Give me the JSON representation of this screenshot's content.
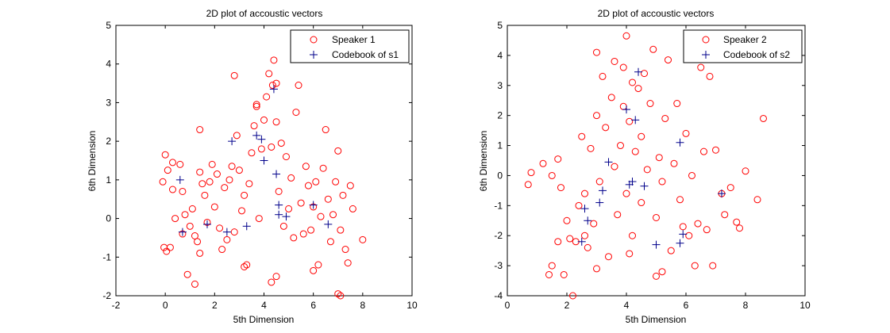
{
  "chart_data": [
    {
      "type": "scatter",
      "title": "2D plot of accoustic vectors",
      "xlabel": "5th Dimension",
      "ylabel": "6th Dimension",
      "xlim": [
        -2,
        10
      ],
      "ylim": [
        -2,
        5
      ],
      "xticks": [
        "-2",
        "0",
        "2",
        "4",
        "6",
        "8",
        "10"
      ],
      "yticks": [
        "-2",
        "-1",
        "0",
        "1",
        "2",
        "3",
        "4",
        "5"
      ],
      "legend_position": "top-right",
      "series": [
        {
          "name": "Speaker 1",
          "marker": "circle",
          "color": "#ff0000",
          "points": [
            [
              0.0,
              1.65
            ],
            [
              0.1,
              1.25
            ],
            [
              0.3,
              1.45
            ],
            [
              -0.1,
              0.95
            ],
            [
              0.2,
              -0.75
            ],
            [
              0.05,
              -0.85
            ],
            [
              -0.05,
              -0.75
            ],
            [
              0.4,
              0.0
            ],
            [
              0.3,
              0.75
            ],
            [
              0.6,
              1.4
            ],
            [
              0.7,
              0.7
            ],
            [
              0.7,
              -0.4
            ],
            [
              0.8,
              0.1
            ],
            [
              0.9,
              -1.45
            ],
            [
              1.0,
              -0.2
            ],
            [
              1.1,
              0.25
            ],
            [
              1.2,
              -0.45
            ],
            [
              1.3,
              -0.6
            ],
            [
              1.4,
              1.2
            ],
            [
              1.5,
              0.9
            ],
            [
              1.4,
              -0.9
            ],
            [
              1.6,
              0.6
            ],
            [
              1.7,
              -0.1
            ],
            [
              1.8,
              0.95
            ],
            [
              1.9,
              1.4
            ],
            [
              2.0,
              0.3
            ],
            [
              2.1,
              1.15
            ],
            [
              2.2,
              -0.25
            ],
            [
              2.3,
              -0.8
            ],
            [
              2.4,
              0.8
            ],
            [
              2.5,
              -0.55
            ],
            [
              2.6,
              1.0
            ],
            [
              2.7,
              1.35
            ],
            [
              2.8,
              -0.35
            ],
            [
              2.9,
              2.15
            ],
            [
              3.0,
              1.25
            ],
            [
              3.1,
              0.2
            ],
            [
              3.2,
              0.6
            ],
            [
              3.3,
              -1.2
            ],
            [
              3.4,
              0.9
            ],
            [
              3.5,
              1.7
            ],
            [
              3.6,
              2.4
            ],
            [
              3.7,
              2.95
            ],
            [
              3.8,
              0.0
            ],
            [
              3.9,
              1.8
            ],
            [
              4.0,
              2.55
            ],
            [
              4.1,
              3.15
            ],
            [
              4.2,
              3.75
            ],
            [
              4.3,
              1.85
            ],
            [
              4.35,
              3.45
            ],
            [
              4.4,
              4.1
            ],
            [
              4.5,
              3.5
            ],
            [
              4.6,
              0.7
            ],
            [
              4.7,
              1.95
            ],
            [
              4.8,
              -0.2
            ],
            [
              4.9,
              1.6
            ],
            [
              5.0,
              0.25
            ],
            [
              5.1,
              1.05
            ],
            [
              5.2,
              -0.5
            ],
            [
              5.3,
              2.75
            ],
            [
              5.4,
              3.45
            ],
            [
              5.5,
              0.4
            ],
            [
              5.6,
              -0.4
            ],
            [
              5.7,
              1.35
            ],
            [
              5.8,
              0.85
            ],
            [
              5.9,
              -0.3
            ],
            [
              6.0,
              0.3
            ],
            [
              6.1,
              0.95
            ],
            [
              6.2,
              -1.2
            ],
            [
              6.3,
              0.05
            ],
            [
              6.4,
              1.3
            ],
            [
              6.5,
              2.3
            ],
            [
              6.6,
              0.5
            ],
            [
              6.7,
              -0.6
            ],
            [
              6.8,
              0.1
            ],
            [
              6.9,
              0.95
            ],
            [
              7.0,
              1.75
            ],
            [
              7.1,
              -0.3
            ],
            [
              7.2,
              0.6
            ],
            [
              7.3,
              -0.8
            ],
            [
              7.4,
              -1.15
            ],
            [
              7.5,
              0.85
            ],
            [
              7.6,
              0.25
            ],
            [
              8.0,
              -0.55
            ],
            [
              7.0,
              -1.95
            ],
            [
              7.1,
              -2.0
            ],
            [
              6.0,
              -1.35
            ],
            [
              4.5,
              -1.5
            ],
            [
              4.3,
              -1.65
            ],
            [
              3.2,
              -1.25
            ],
            [
              1.2,
              -1.7
            ],
            [
              2.8,
              3.7
            ],
            [
              1.4,
              2.3
            ],
            [
              4.5,
              2.5
            ],
            [
              3.7,
              2.9
            ]
          ]
        },
        {
          "name": "Codebook of s1",
          "marker": "plus",
          "color": "#00008b",
          "points": [
            [
              0.6,
              1.0
            ],
            [
              0.7,
              -0.35
            ],
            [
              1.7,
              -0.15
            ],
            [
              2.5,
              -0.35
            ],
            [
              2.7,
              2.0
            ],
            [
              3.3,
              -0.2
            ],
            [
              3.7,
              2.15
            ],
            [
              3.9,
              2.05
            ],
            [
              4.0,
              1.5
            ],
            [
              4.4,
              3.35
            ],
            [
              4.5,
              1.15
            ],
            [
              4.6,
              0.35
            ],
            [
              4.6,
              0.1
            ],
            [
              4.9,
              0.05
            ],
            [
              6.0,
              0.35
            ],
            [
              6.6,
              -0.15
            ]
          ]
        }
      ]
    },
    {
      "type": "scatter",
      "title": "2D plot of accoustic vectors",
      "xlabel": "5th Dimension",
      "ylabel": "6th Dimension",
      "xlim": [
        0,
        10
      ],
      "ylim": [
        -4,
        5
      ],
      "xticks": [
        "0",
        "2",
        "4",
        "6",
        "8",
        "10"
      ],
      "yticks": [
        "-4",
        "-3",
        "-2",
        "-1",
        "0",
        "1",
        "2",
        "3",
        "4",
        "5"
      ],
      "legend_position": "top-right",
      "series": [
        {
          "name": "Speaker 2",
          "marker": "circle",
          "color": "#ff0000",
          "points": [
            [
              0.7,
              -0.3
            ],
            [
              0.8,
              0.1
            ],
            [
              1.2,
              0.4
            ],
            [
              1.4,
              -3.3
            ],
            [
              1.5,
              -3.0
            ],
            [
              1.5,
              0.0
            ],
            [
              1.7,
              0.55
            ],
            [
              1.8,
              -0.4
            ],
            [
              1.9,
              -3.3
            ],
            [
              2.0,
              -1.5
            ],
            [
              2.1,
              -2.1
            ],
            [
              2.2,
              -4.0
            ],
            [
              2.3,
              -2.2
            ],
            [
              2.4,
              -1.0
            ],
            [
              2.5,
              1.3
            ],
            [
              2.6,
              -0.6
            ],
            [
              2.7,
              -2.4
            ],
            [
              2.8,
              0.9
            ],
            [
              2.9,
              -1.6
            ],
            [
              3.0,
              2.0
            ],
            [
              3.0,
              4.1
            ],
            [
              3.1,
              -0.2
            ],
            [
              3.2,
              3.3
            ],
            [
              3.3,
              1.6
            ],
            [
              3.4,
              -2.7
            ],
            [
              3.5,
              2.6
            ],
            [
              3.6,
              0.3
            ],
            [
              3.6,
              3.8
            ],
            [
              3.7,
              -1.3
            ],
            [
              3.8,
              1.0
            ],
            [
              3.9,
              2.3
            ],
            [
              3.9,
              3.6
            ],
            [
              4.0,
              -0.6
            ],
            [
              4.0,
              4.65
            ],
            [
              4.1,
              1.8
            ],
            [
              4.2,
              3.1
            ],
            [
              4.2,
              -2.0
            ],
            [
              4.3,
              0.8
            ],
            [
              4.4,
              2.9
            ],
            [
              4.5,
              1.3
            ],
            [
              4.5,
              -0.9
            ],
            [
              4.6,
              3.4
            ],
            [
              4.7,
              0.2
            ],
            [
              4.8,
              2.4
            ],
            [
              4.9,
              4.2
            ],
            [
              5.0,
              -1.4
            ],
            [
              5.0,
              -3.35
            ],
            [
              5.1,
              0.6
            ],
            [
              5.2,
              -0.2
            ],
            [
              5.3,
              1.9
            ],
            [
              5.4,
              3.85
            ],
            [
              5.5,
              -2.5
            ],
            [
              5.6,
              0.4
            ],
            [
              5.7,
              2.4
            ],
            [
              5.8,
              -0.8
            ],
            [
              5.9,
              -1.7
            ],
            [
              6.0,
              1.4
            ],
            [
              6.1,
              -2.0
            ],
            [
              6.2,
              0.0
            ],
            [
              6.3,
              -3.0
            ],
            [
              6.4,
              -1.6
            ],
            [
              6.5,
              3.6
            ],
            [
              6.6,
              0.8
            ],
            [
              6.7,
              -1.8
            ],
            [
              6.8,
              3.3
            ],
            [
              6.9,
              -3.0
            ],
            [
              7.0,
              0.85
            ],
            [
              7.2,
              -0.6
            ],
            [
              7.3,
              -1.3
            ],
            [
              7.5,
              -0.4
            ],
            [
              7.7,
              -1.55
            ],
            [
              7.8,
              -1.75
            ],
            [
              8.0,
              0.15
            ],
            [
              8.4,
              -0.8
            ],
            [
              8.6,
              1.9
            ],
            [
              5.2,
              -3.2
            ],
            [
              4.1,
              -2.6
            ],
            [
              3.0,
              -3.1
            ],
            [
              2.6,
              -2.0
            ],
            [
              1.7,
              -2.2
            ]
          ]
        },
        {
          "name": "Codebook of s2",
          "marker": "plus",
          "color": "#00008b",
          "points": [
            [
              2.5,
              -2.2
            ],
            [
              2.6,
              -1.1
            ],
            [
              2.7,
              -1.5
            ],
            [
              3.1,
              -0.9
            ],
            [
              3.2,
              -0.5
            ],
            [
              3.4,
              0.45
            ],
            [
              4.0,
              2.2
            ],
            [
              4.1,
              -0.3
            ],
            [
              4.2,
              -0.2
            ],
            [
              4.3,
              1.85
            ],
            [
              4.4,
              3.45
            ],
            [
              4.6,
              -0.35
            ],
            [
              5.0,
              -2.3
            ],
            [
              5.8,
              1.1
            ],
            [
              5.8,
              -2.25
            ],
            [
              5.9,
              -1.95
            ],
            [
              7.2,
              -0.6
            ]
          ]
        }
      ]
    }
  ]
}
